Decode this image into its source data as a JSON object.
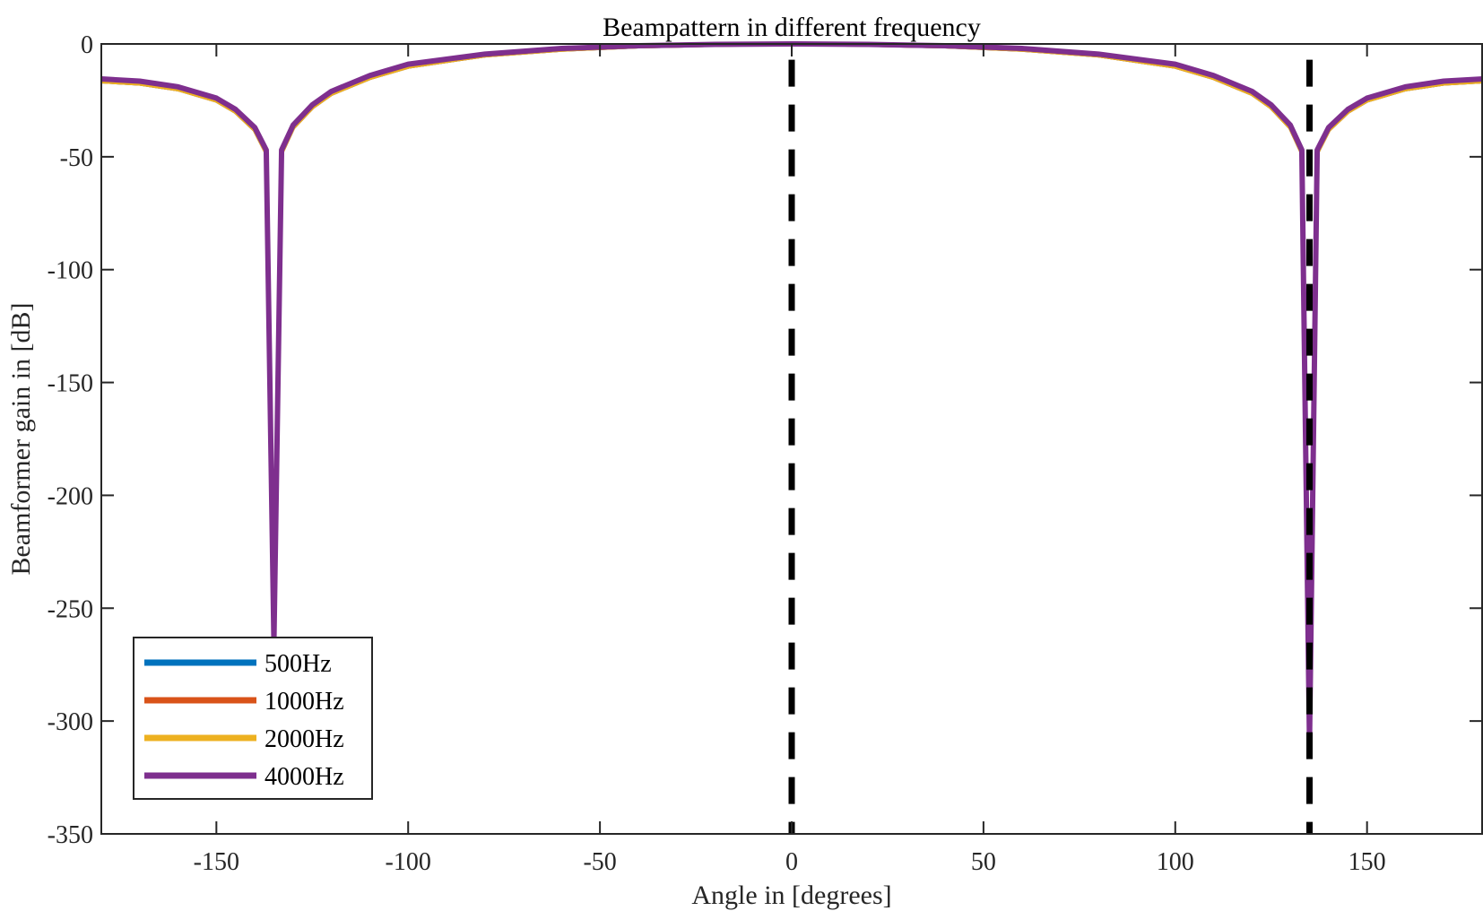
{
  "chart_data": {
    "type": "line",
    "title": "Beampattern in different frequency",
    "xlabel": "Angle in [degrees]",
    "ylabel": "Beamformer gain in [dB]",
    "xlim": [
      -180,
      180
    ],
    "ylim": [
      -350,
      0
    ],
    "xticks": [
      -150,
      -100,
      -50,
      0,
      50,
      100,
      150
    ],
    "yticks": [
      0,
      -50,
      -100,
      -150,
      -200,
      -250,
      -300,
      -350
    ],
    "grid": false,
    "legend_position": "bottom-left",
    "colors": {
      "500Hz": "#0072BD",
      "1000Hz": "#D95319",
      "2000Hz": "#EDB120",
      "4000Hz": "#7E2F8E",
      "marker": "#000000"
    },
    "series": [
      {
        "name": "500Hz",
        "x": [
          -180,
          -170,
          -160,
          -150,
          -145,
          -140,
          -137,
          -135,
          -133,
          -130,
          -125,
          -120,
          -110,
          -100,
          -80,
          -60,
          -40,
          -20,
          0,
          20,
          40,
          60,
          80,
          100,
          110,
          120,
          125,
          130,
          133,
          135,
          137,
          140,
          145,
          150,
          160,
          170,
          180
        ],
        "y": [
          -16.5,
          -17.5,
          -20,
          -25,
          -30,
          -38,
          -48,
          -265,
          -48,
          -37,
          -28,
          -22,
          -15,
          -10,
          -5,
          -2.5,
          -1,
          -0.3,
          0,
          -0.3,
          -1,
          -2.5,
          -5,
          -10,
          -15,
          -22,
          -28,
          -37,
          -48,
          -310,
          -48,
          -38,
          -30,
          -25,
          -20,
          -17.5,
          -16.5
        ]
      },
      {
        "name": "1000Hz",
        "x": [
          -180,
          -170,
          -160,
          -150,
          -145,
          -140,
          -137,
          -135,
          -133,
          -130,
          -125,
          -120,
          -110,
          -100,
          -80,
          -60,
          -40,
          -20,
          0,
          20,
          40,
          60,
          80,
          100,
          110,
          120,
          125,
          130,
          133,
          135,
          137,
          140,
          145,
          150,
          160,
          170,
          180
        ],
        "y": [
          -16.5,
          -17.5,
          -20,
          -25,
          -30,
          -38,
          -48,
          -265,
          -48,
          -37,
          -28,
          -22,
          -15,
          -10,
          -5,
          -2.5,
          -1,
          -0.3,
          0,
          -0.3,
          -1,
          -2.5,
          -5,
          -10,
          -15,
          -22,
          -28,
          -37,
          -48,
          -310,
          -48,
          -38,
          -30,
          -25,
          -20,
          -17.5,
          -16.5
        ]
      },
      {
        "name": "2000Hz",
        "x": [
          -180,
          -170,
          -160,
          -150,
          -145,
          -140,
          -137,
          -135,
          -133,
          -130,
          -125,
          -120,
          -110,
          -100,
          -80,
          -60,
          -40,
          -20,
          0,
          20,
          40,
          60,
          80,
          100,
          110,
          120,
          125,
          130,
          133,
          135,
          137,
          140,
          145,
          150,
          160,
          170,
          180
        ],
        "y": [
          -16.5,
          -17.5,
          -20,
          -25,
          -30,
          -38,
          -48,
          -265,
          -48,
          -37,
          -28,
          -22,
          -15,
          -10,
          -5,
          -2.5,
          -1,
          -0.3,
          0,
          -0.3,
          -1,
          -2.5,
          -5,
          -10,
          -15,
          -22,
          -28,
          -37,
          -48,
          -310,
          -48,
          -38,
          -30,
          -25,
          -20,
          -17.5,
          -16.5
        ]
      },
      {
        "name": "4000Hz",
        "x": [
          -180,
          -170,
          -160,
          -150,
          -145,
          -140,
          -137,
          -135,
          -133,
          -130,
          -125,
          -120,
          -110,
          -100,
          -80,
          -60,
          -40,
          -20,
          0,
          20,
          40,
          60,
          80,
          100,
          110,
          120,
          125,
          130,
          133,
          135,
          137,
          140,
          145,
          150,
          160,
          170,
          180
        ],
        "y": [
          -15.5,
          -16.5,
          -19,
          -24,
          -29,
          -37,
          -47,
          -265,
          -47,
          -36,
          -27,
          -21,
          -14,
          -9,
          -4.5,
          -2,
          -0.8,
          -0.2,
          0,
          -0.2,
          -0.8,
          -2,
          -4.5,
          -9,
          -14,
          -21,
          -27,
          -36,
          -47,
          -310,
          -47,
          -37,
          -29,
          -24,
          -19,
          -16.5,
          -15.5
        ]
      }
    ],
    "vertical_markers": [
      {
        "x": 0,
        "style": "dashed",
        "y_range": [
          -7,
          -350
        ]
      },
      {
        "x": 135,
        "style": "dashed",
        "y_range": [
          -7,
          -350
        ]
      }
    ]
  }
}
